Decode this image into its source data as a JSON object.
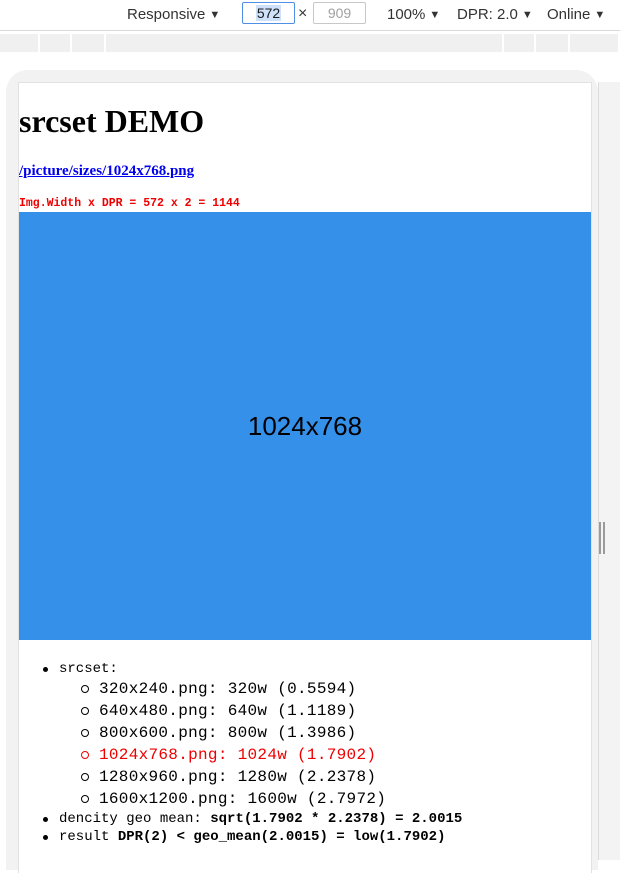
{
  "toolbar": {
    "device": "Responsive",
    "width_value": "572",
    "height_value": "909",
    "times_sign": "×",
    "zoom": "100%",
    "dpr": "DPR: 2.0",
    "network": "Online",
    "caret_icon": "caret-down-icon"
  },
  "page": {
    "title": "srcset DEMO",
    "link": "/picture/sizes/1024x768.png",
    "formula": "Img.Width x DPR = 572 x 2 = 1144",
    "image_label": "1024x768",
    "image_color": "#3590ea",
    "srcset_label": "srcset:",
    "srcset": [
      "320x240.png: 320w (0.5594)",
      "640x480.png: 640w (1.1189)",
      "800x600.png: 800w (1.3986)",
      "1024x768.png: 1024w (1.7902)",
      "1280x960.png: 1280w (2.2378)",
      "1600x1200.png: 1600w (2.7972)"
    ],
    "highlight_color": "#ee0000",
    "density_label": "dencity geo mean: ",
    "density_value": "sqrt(1.7902 * 2.2378) = 2.0015",
    "result_label": "result ",
    "result_value": "DPR(2) < geo_mean(2.0015) = low(1.7902)"
  }
}
